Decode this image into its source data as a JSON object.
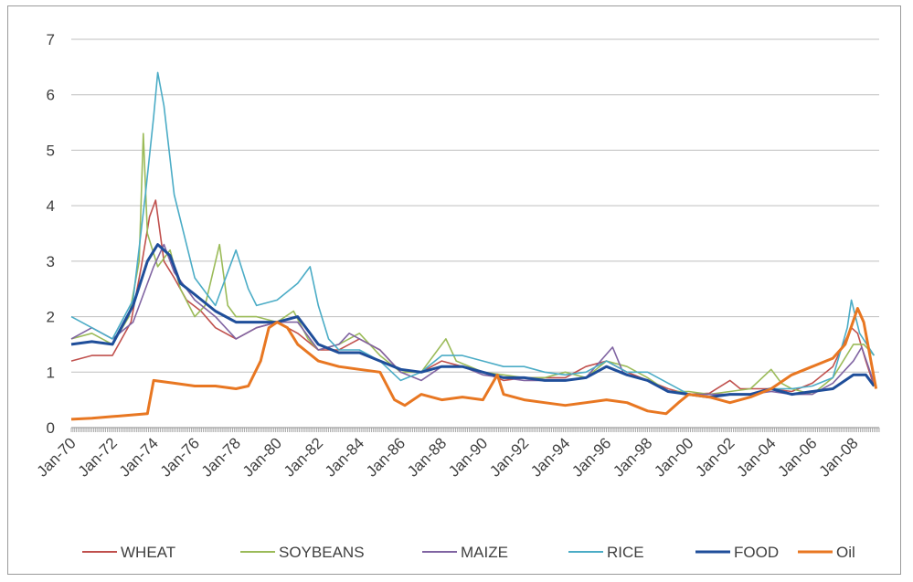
{
  "chart_data": {
    "type": "line",
    "title": "",
    "xlabel": "",
    "ylabel": "",
    "ylim": [
      0,
      7
    ],
    "yticks": [
      "0",
      "1",
      "2",
      "3",
      "4",
      "5",
      "6",
      "7"
    ],
    "xlim": [
      1970.0,
      2009.25
    ],
    "xticks": [
      "Jan-70",
      "Jan-72",
      "Jan-74",
      "Jan-76",
      "Jan-78",
      "Jan-80",
      "Jan-82",
      "Jan-84",
      "Jan-86",
      "Jan-88",
      "Jan-90",
      "Jan-92",
      "Jan-94",
      "Jan-96",
      "Jan-98",
      "Jan-00",
      "Jan-02",
      "Jan-04",
      "Jan-06",
      "Jan-08"
    ],
    "grid": "horizontal",
    "legend_position": "bottom",
    "series": [
      {
        "name": "WHEAT",
        "color": "#c0504d",
        "points": [
          [
            1970,
            1.2
          ],
          [
            1971,
            1.3
          ],
          [
            1972,
            1.3
          ],
          [
            1972.9,
            1.9
          ],
          [
            1973.4,
            2.9
          ],
          [
            1973.8,
            3.8
          ],
          [
            1974.1,
            4.1
          ],
          [
            1974.5,
            3.0
          ],
          [
            1975,
            2.7
          ],
          [
            1975.6,
            2.3
          ],
          [
            1976.3,
            2.1
          ],
          [
            1977,
            1.8
          ],
          [
            1978,
            1.6
          ],
          [
            1979,
            1.8
          ],
          [
            1980,
            1.9
          ],
          [
            1980.5,
            1.8
          ],
          [
            1981,
            1.7
          ],
          [
            1982,
            1.4
          ],
          [
            1983,
            1.4
          ],
          [
            1984,
            1.6
          ],
          [
            1985,
            1.4
          ],
          [
            1986,
            1.0
          ],
          [
            1987,
            1.0
          ],
          [
            1988,
            1.2
          ],
          [
            1989,
            1.1
          ],
          [
            1990,
            1.0
          ],
          [
            1991,
            0.85
          ],
          [
            1992,
            0.9
          ],
          [
            1993,
            0.9
          ],
          [
            1994,
            0.9
          ],
          [
            1995,
            1.1
          ],
          [
            1996,
            1.2
          ],
          [
            1996.5,
            1.1
          ],
          [
            1997,
            1.0
          ],
          [
            1998,
            0.85
          ],
          [
            1999,
            0.7
          ],
          [
            2000,
            0.6
          ],
          [
            2001,
            0.62
          ],
          [
            2002,
            0.85
          ],
          [
            2002.5,
            0.7
          ],
          [
            2003,
            0.7
          ],
          [
            2004,
            0.7
          ],
          [
            2005,
            0.65
          ],
          [
            2006,
            0.8
          ],
          [
            2007,
            1.1
          ],
          [
            2007.9,
            1.8
          ],
          [
            2008.2,
            1.7
          ],
          [
            2008.6,
            1.2
          ],
          [
            2009,
            0.75
          ]
        ]
      },
      {
        "name": "SOYBEANS",
        "color": "#9bbb59",
        "points": [
          [
            1970,
            1.6
          ],
          [
            1971,
            1.7
          ],
          [
            1972,
            1.5
          ],
          [
            1972.8,
            2.0
          ],
          [
            1973.3,
            3.0
          ],
          [
            1973.5,
            5.3
          ],
          [
            1973.7,
            3.5
          ],
          [
            1974.2,
            2.9
          ],
          [
            1974.8,
            3.2
          ],
          [
            1975.3,
            2.5
          ],
          [
            1976,
            2.0
          ],
          [
            1976.5,
            2.2
          ],
          [
            1977.2,
            3.3
          ],
          [
            1977.6,
            2.2
          ],
          [
            1978,
            2.0
          ],
          [
            1979,
            2.0
          ],
          [
            1980,
            1.9
          ],
          [
            1980.8,
            2.1
          ],
          [
            1981.5,
            1.6
          ],
          [
            1982,
            1.4
          ],
          [
            1983,
            1.5
          ],
          [
            1984,
            1.7
          ],
          [
            1985,
            1.3
          ],
          [
            1986,
            1.0
          ],
          [
            1987,
            1.0
          ],
          [
            1988.2,
            1.6
          ],
          [
            1988.7,
            1.2
          ],
          [
            1990,
            1.0
          ],
          [
            1991,
            0.95
          ],
          [
            1992,
            0.9
          ],
          [
            1993,
            0.9
          ],
          [
            1994,
            1.0
          ],
          [
            1995,
            0.9
          ],
          [
            1996,
            1.2
          ],
          [
            1997,
            1.1
          ],
          [
            1998,
            0.9
          ],
          [
            1999,
            0.65
          ],
          [
            2000,
            0.65
          ],
          [
            2001,
            0.6
          ],
          [
            2002,
            0.65
          ],
          [
            2003,
            0.7
          ],
          [
            2004,
            1.05
          ],
          [
            2004.5,
            0.8
          ],
          [
            2005,
            0.7
          ],
          [
            2006,
            0.6
          ],
          [
            2007,
            0.9
          ],
          [
            2008,
            1.5
          ],
          [
            2008.5,
            1.5
          ],
          [
            2009,
            1.3
          ]
        ]
      },
      {
        "name": "MAIZE",
        "color": "#8064a2",
        "points": [
          [
            1970,
            1.6
          ],
          [
            1971,
            1.8
          ],
          [
            1972,
            1.6
          ],
          [
            1973,
            1.9
          ],
          [
            1974,
            2.9
          ],
          [
            1974.5,
            3.3
          ],
          [
            1975,
            2.8
          ],
          [
            1976,
            2.3
          ],
          [
            1977,
            2.0
          ],
          [
            1978,
            1.6
          ],
          [
            1979,
            1.8
          ],
          [
            1980,
            1.9
          ],
          [
            1981,
            1.9
          ],
          [
            1982,
            1.4
          ],
          [
            1983,
            1.5
          ],
          [
            1983.5,
            1.7
          ],
          [
            1984,
            1.6
          ],
          [
            1985,
            1.4
          ],
          [
            1986,
            1.0
          ],
          [
            1987,
            0.85
          ],
          [
            1988,
            1.1
          ],
          [
            1989,
            1.1
          ],
          [
            1990,
            0.95
          ],
          [
            1991,
            0.9
          ],
          [
            1992,
            0.85
          ],
          [
            1993,
            0.85
          ],
          [
            1994,
            0.85
          ],
          [
            1995,
            0.9
          ],
          [
            1996.3,
            1.45
          ],
          [
            1996.8,
            1.0
          ],
          [
            1997,
            0.95
          ],
          [
            1998,
            0.85
          ],
          [
            1999,
            0.65
          ],
          [
            2000,
            0.6
          ],
          [
            2001,
            0.6
          ],
          [
            2002,
            0.6
          ],
          [
            2003,
            0.6
          ],
          [
            2004,
            0.65
          ],
          [
            2005,
            0.6
          ],
          [
            2006,
            0.6
          ],
          [
            2007,
            0.8
          ],
          [
            2008,
            1.2
          ],
          [
            2008.4,
            1.45
          ],
          [
            2009,
            0.8
          ]
        ]
      },
      {
        "name": "RICE",
        "color": "#4bacc6",
        "points": [
          [
            1970,
            2.0
          ],
          [
            1971,
            1.8
          ],
          [
            1972,
            1.6
          ],
          [
            1973,
            2.3
          ],
          [
            1973.6,
            4.2
          ],
          [
            1974,
            5.6
          ],
          [
            1974.2,
            6.4
          ],
          [
            1974.5,
            5.8
          ],
          [
            1975,
            4.2
          ],
          [
            1976,
            2.7
          ],
          [
            1977,
            2.2
          ],
          [
            1978,
            3.2
          ],
          [
            1978.6,
            2.5
          ],
          [
            1979,
            2.2
          ],
          [
            1980,
            2.3
          ],
          [
            1981,
            2.6
          ],
          [
            1981.6,
            2.9
          ],
          [
            1982,
            2.2
          ],
          [
            1982.5,
            1.6
          ],
          [
            1983,
            1.4
          ],
          [
            1984,
            1.4
          ],
          [
            1985,
            1.2
          ],
          [
            1986,
            0.85
          ],
          [
            1987,
            1.0
          ],
          [
            1988,
            1.3
          ],
          [
            1989,
            1.3
          ],
          [
            1990,
            1.2
          ],
          [
            1991,
            1.1
          ],
          [
            1992,
            1.1
          ],
          [
            1993,
            1.0
          ],
          [
            1994,
            0.95
          ],
          [
            1995,
            1.0
          ],
          [
            1996,
            1.2
          ],
          [
            1997,
            1.0
          ],
          [
            1998,
            1.0
          ],
          [
            1999,
            0.8
          ],
          [
            2000,
            0.6
          ],
          [
            2001,
            0.55
          ],
          [
            2002,
            0.6
          ],
          [
            2003,
            0.6
          ],
          [
            2004,
            0.7
          ],
          [
            2005,
            0.7
          ],
          [
            2006,
            0.75
          ],
          [
            2007,
            0.9
          ],
          [
            2007.7,
            1.8
          ],
          [
            2007.9,
            2.3
          ],
          [
            2008.3,
            1.7
          ],
          [
            2009,
            1.3
          ]
        ]
      },
      {
        "name": "FOOD",
        "color": "#1f4e9a",
        "points": [
          [
            1970,
            1.5
          ],
          [
            1971,
            1.55
          ],
          [
            1972,
            1.5
          ],
          [
            1973,
            2.2
          ],
          [
            1973.7,
            3.0
          ],
          [
            1974.2,
            3.3
          ],
          [
            1974.8,
            3.1
          ],
          [
            1975.3,
            2.6
          ],
          [
            1976,
            2.4
          ],
          [
            1977,
            2.1
          ],
          [
            1978,
            1.9
          ],
          [
            1979,
            1.9
          ],
          [
            1980,
            1.9
          ],
          [
            1981,
            2.0
          ],
          [
            1982,
            1.5
          ],
          [
            1983,
            1.35
          ],
          [
            1984,
            1.35
          ],
          [
            1985,
            1.2
          ],
          [
            1986,
            1.05
          ],
          [
            1987,
            1.0
          ],
          [
            1988,
            1.1
          ],
          [
            1989,
            1.1
          ],
          [
            1990,
            1.0
          ],
          [
            1991,
            0.9
          ],
          [
            1992,
            0.9
          ],
          [
            1993,
            0.85
          ],
          [
            1994,
            0.85
          ],
          [
            1995,
            0.9
          ],
          [
            1996,
            1.1
          ],
          [
            1997,
            0.95
          ],
          [
            1998,
            0.85
          ],
          [
            1999,
            0.65
          ],
          [
            2000,
            0.6
          ],
          [
            2001,
            0.55
          ],
          [
            2002,
            0.6
          ],
          [
            2003,
            0.6
          ],
          [
            2004,
            0.7
          ],
          [
            2005,
            0.6
          ],
          [
            2006,
            0.65
          ],
          [
            2007,
            0.7
          ],
          [
            2008,
            0.95
          ],
          [
            2008.6,
            0.95
          ],
          [
            2009,
            0.75
          ]
        ]
      },
      {
        "name": "Oil",
        "color": "#e87722",
        "points": [
          [
            1970,
            0.15
          ],
          [
            1971,
            0.17
          ],
          [
            1972,
            0.2
          ],
          [
            1973.7,
            0.25
          ],
          [
            1974,
            0.85
          ],
          [
            1975,
            0.8
          ],
          [
            1976,
            0.75
          ],
          [
            1977,
            0.75
          ],
          [
            1978,
            0.7
          ],
          [
            1978.6,
            0.75
          ],
          [
            1979.2,
            1.2
          ],
          [
            1979.6,
            1.8
          ],
          [
            1980,
            1.9
          ],
          [
            1980.5,
            1.8
          ],
          [
            1981,
            1.5
          ],
          [
            1982,
            1.2
          ],
          [
            1983,
            1.1
          ],
          [
            1984,
            1.05
          ],
          [
            1985,
            1.0
          ],
          [
            1985.7,
            0.5
          ],
          [
            1986.2,
            0.4
          ],
          [
            1987,
            0.6
          ],
          [
            1988,
            0.5
          ],
          [
            1989,
            0.55
          ],
          [
            1990,
            0.5
          ],
          [
            1990.7,
            0.95
          ],
          [
            1991,
            0.6
          ],
          [
            1992,
            0.5
          ],
          [
            1993,
            0.45
          ],
          [
            1994,
            0.4
          ],
          [
            1995,
            0.45
          ],
          [
            1996,
            0.5
          ],
          [
            1997,
            0.45
          ],
          [
            1998,
            0.3
          ],
          [
            1998.9,
            0.25
          ],
          [
            1999.5,
            0.45
          ],
          [
            2000,
            0.6
          ],
          [
            2001,
            0.55
          ],
          [
            2002,
            0.45
          ],
          [
            2003,
            0.55
          ],
          [
            2004,
            0.7
          ],
          [
            2005,
            0.95
          ],
          [
            2006,
            1.1
          ],
          [
            2007,
            1.25
          ],
          [
            2007.6,
            1.5
          ],
          [
            2008.2,
            2.15
          ],
          [
            2008.5,
            1.9
          ],
          [
            2008.9,
            1.1
          ],
          [
            2009.1,
            0.7
          ]
        ]
      }
    ]
  }
}
